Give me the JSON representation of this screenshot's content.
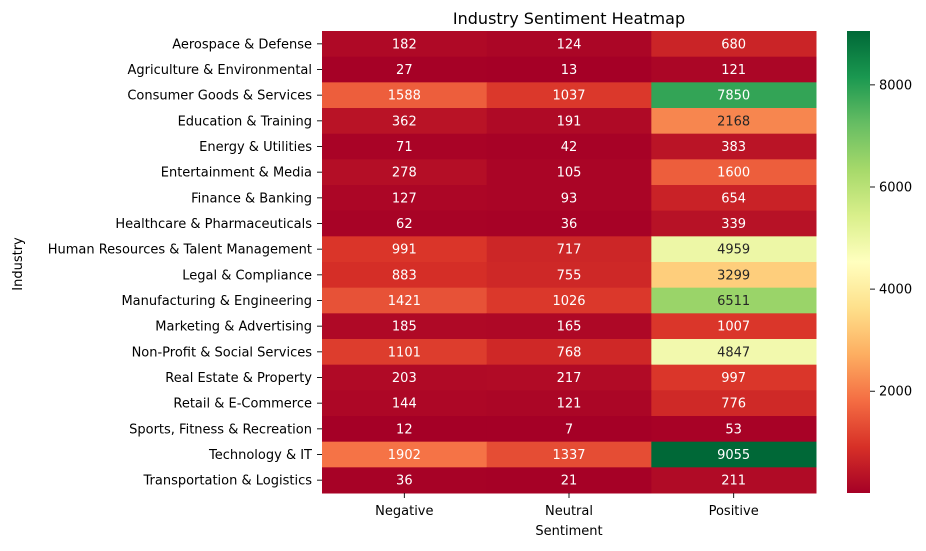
{
  "chart_data": {
    "type": "heatmap",
    "title": "Industry Sentiment Heatmap",
    "xlabel": "Sentiment",
    "ylabel": "Industry",
    "x_categories": [
      "Negative",
      "Neutral",
      "Positive"
    ],
    "y_categories": [
      "Aerospace & Defense",
      "Agriculture & Environmental",
      "Consumer Goods & Services",
      "Education & Training",
      "Energy & Utilities",
      "Entertainment & Media",
      "Finance & Banking",
      "Healthcare & Pharmaceuticals",
      "Human Resources & Talent Management",
      "Legal & Compliance",
      "Manufacturing & Engineering",
      "Marketing & Advertising",
      "Non-Profit & Social Services",
      "Real Estate & Property",
      "Retail & E-Commerce",
      "Sports, Fitness & Recreation",
      "Technology & IT",
      "Transportation & Logistics"
    ],
    "values": [
      [
        182,
        124,
        680
      ],
      [
        27,
        13,
        121
      ],
      [
        1588,
        1037,
        7850
      ],
      [
        362,
        191,
        2168
      ],
      [
        71,
        42,
        383
      ],
      [
        278,
        105,
        1600
      ],
      [
        127,
        93,
        654
      ],
      [
        62,
        36,
        339
      ],
      [
        991,
        717,
        4959
      ],
      [
        883,
        755,
        3299
      ],
      [
        1421,
        1026,
        6511
      ],
      [
        185,
        165,
        1007
      ],
      [
        1101,
        768,
        4847
      ],
      [
        203,
        217,
        997
      ],
      [
        144,
        121,
        776
      ],
      [
        12,
        7,
        53
      ],
      [
        1902,
        1337,
        9055
      ],
      [
        36,
        21,
        211
      ]
    ],
    "colormap": "RdYlGn",
    "color_range": [
      7,
      9055
    ],
    "colorbar_ticks": [
      2000,
      4000,
      6000,
      8000
    ],
    "annotations": true,
    "grid": false
  }
}
